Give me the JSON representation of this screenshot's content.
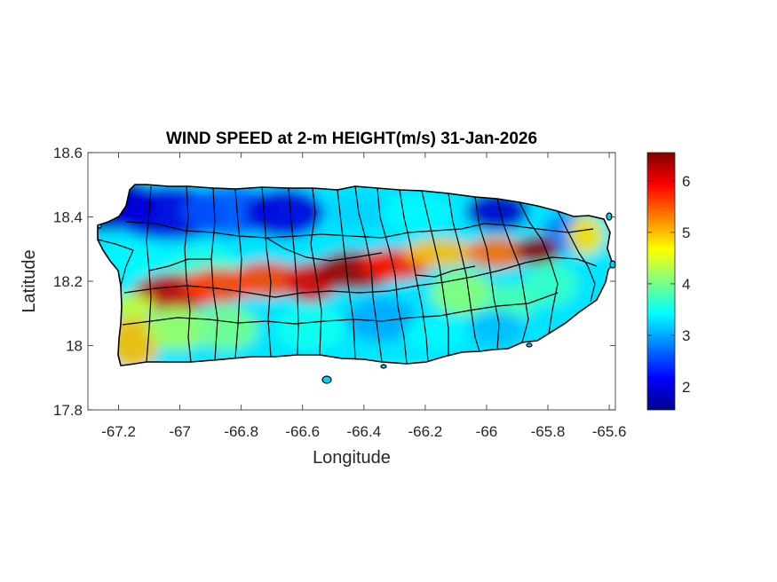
{
  "chart_data": {
    "type": "heatmap",
    "title": "WIND SPEED at 2-m HEIGHT(m/s) 31-Jan-2026",
    "xlabel": "Longitude",
    "ylabel": "Latitude",
    "xlim": [
      -67.3,
      -65.58
    ],
    "ylim": [
      17.8,
      18.6
    ],
    "xticks": [
      -67.2,
      -67,
      -66.8,
      -66.6,
      -66.4,
      -66.2,
      -66,
      -65.8,
      -65.6
    ],
    "xtick_labels": [
      "-67.2",
      "-67",
      "-66.8",
      "-66.6",
      "-66.4",
      "-66.2",
      "-66",
      "-65.8",
      "-65.6"
    ],
    "yticks": [
      17.8,
      18,
      18.2,
      18.4,
      18.6
    ],
    "ytick_labels": [
      "17.8",
      "18",
      "18.2",
      "18.4",
      "18.6"
    ],
    "colorbar": {
      "range": [
        1.55,
        6.55
      ],
      "ticks": [
        2,
        3,
        4,
        5,
        6
      ],
      "tick_labels": [
        "2",
        "3",
        "4",
        "5",
        "6"
      ],
      "colormap": "jet"
    },
    "grid": false
  }
}
